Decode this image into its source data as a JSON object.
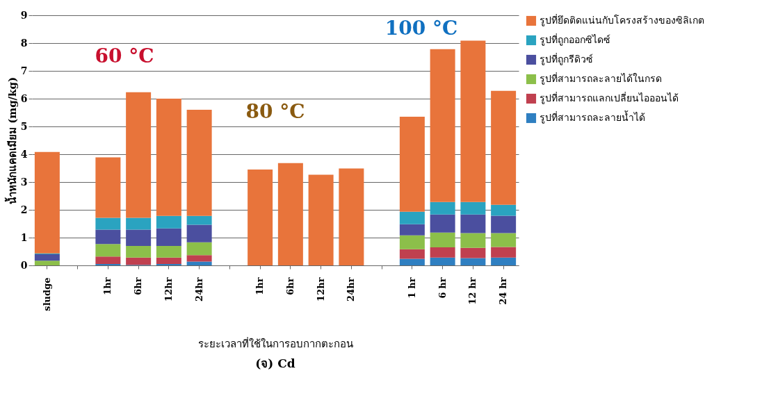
{
  "chart_data": {
    "type": "bar",
    "stacked": true,
    "title": "(จ) Cd",
    "xlabel": "ระยะเวลาที่ใช้ในการอบกากตะกอน",
    "ylabel": "น้ำหนักแคดเมียม (mg/kg)",
    "categories": [
      "sludge",
      null,
      "1hr",
      "6hr",
      "12hr",
      "24hr",
      null,
      "1hr",
      "6hr",
      "12hr",
      "24hr",
      null,
      "1 hr",
      "6 hr",
      "12 hr",
      "24 hr"
    ],
    "series": [
      {
        "name": "รูปที่สามารถละลายน้ำได้",
        "color": "#2f7fc1",
        "values": [
          0,
          null,
          0.05,
          0.02,
          0.05,
          0.14,
          null,
          0,
          0,
          0,
          0,
          null,
          0.24,
          0.28,
          0.26,
          0.28
        ]
      },
      {
        "name": "รูปที่สามารถแลกเปลี่ยนไอออนได้",
        "color": "#c0404f",
        "values": [
          0,
          null,
          0.27,
          0.26,
          0.23,
          0.23,
          null,
          0,
          0,
          0,
          0,
          null,
          0.34,
          0.37,
          0.37,
          0.38
        ]
      },
      {
        "name": "รูปที่สามารถละลายได้ในกรด",
        "color": "#8cbf4a",
        "values": [
          0.17,
          null,
          0.45,
          0.42,
          0.42,
          0.46,
          null,
          0,
          0,
          0,
          0,
          null,
          0.5,
          0.53,
          0.53,
          0.5
        ]
      },
      {
        "name": "รูปที่ถูกรีดิวซ์",
        "color": "#4b4f9f",
        "values": [
          0.23,
          null,
          0.52,
          0.59,
          0.63,
          0.63,
          null,
          0,
          0,
          0,
          0,
          null,
          0.4,
          0.65,
          0.67,
          0.63
        ]
      },
      {
        "name": "รูปที่ถูกออกซิไดซ์",
        "color": "#2aa3c0",
        "values": [
          0.03,
          null,
          0.42,
          0.42,
          0.45,
          0.32,
          null,
          0,
          0,
          0,
          0,
          null,
          0.45,
          0.45,
          0.45,
          0.39
        ]
      },
      {
        "name": "รูปที่ยึดติดแน่นกับโครงสร้างของซิลิเกต",
        "color": "#e8743b",
        "values": [
          3.65,
          null,
          2.18,
          4.52,
          4.22,
          3.82,
          null,
          3.45,
          3.68,
          3.26,
          3.49,
          null,
          3.42,
          5.5,
          5.81,
          4.1
        ]
      }
    ],
    "annotations": [
      "60 °C",
      "80 °C",
      "100 °C"
    ],
    "ylim": [
      0,
      9
    ],
    "yticks": [
      0,
      1,
      2,
      3,
      4,
      5,
      6,
      7,
      8,
      9
    ],
    "grid": "y",
    "legend": "right"
  }
}
